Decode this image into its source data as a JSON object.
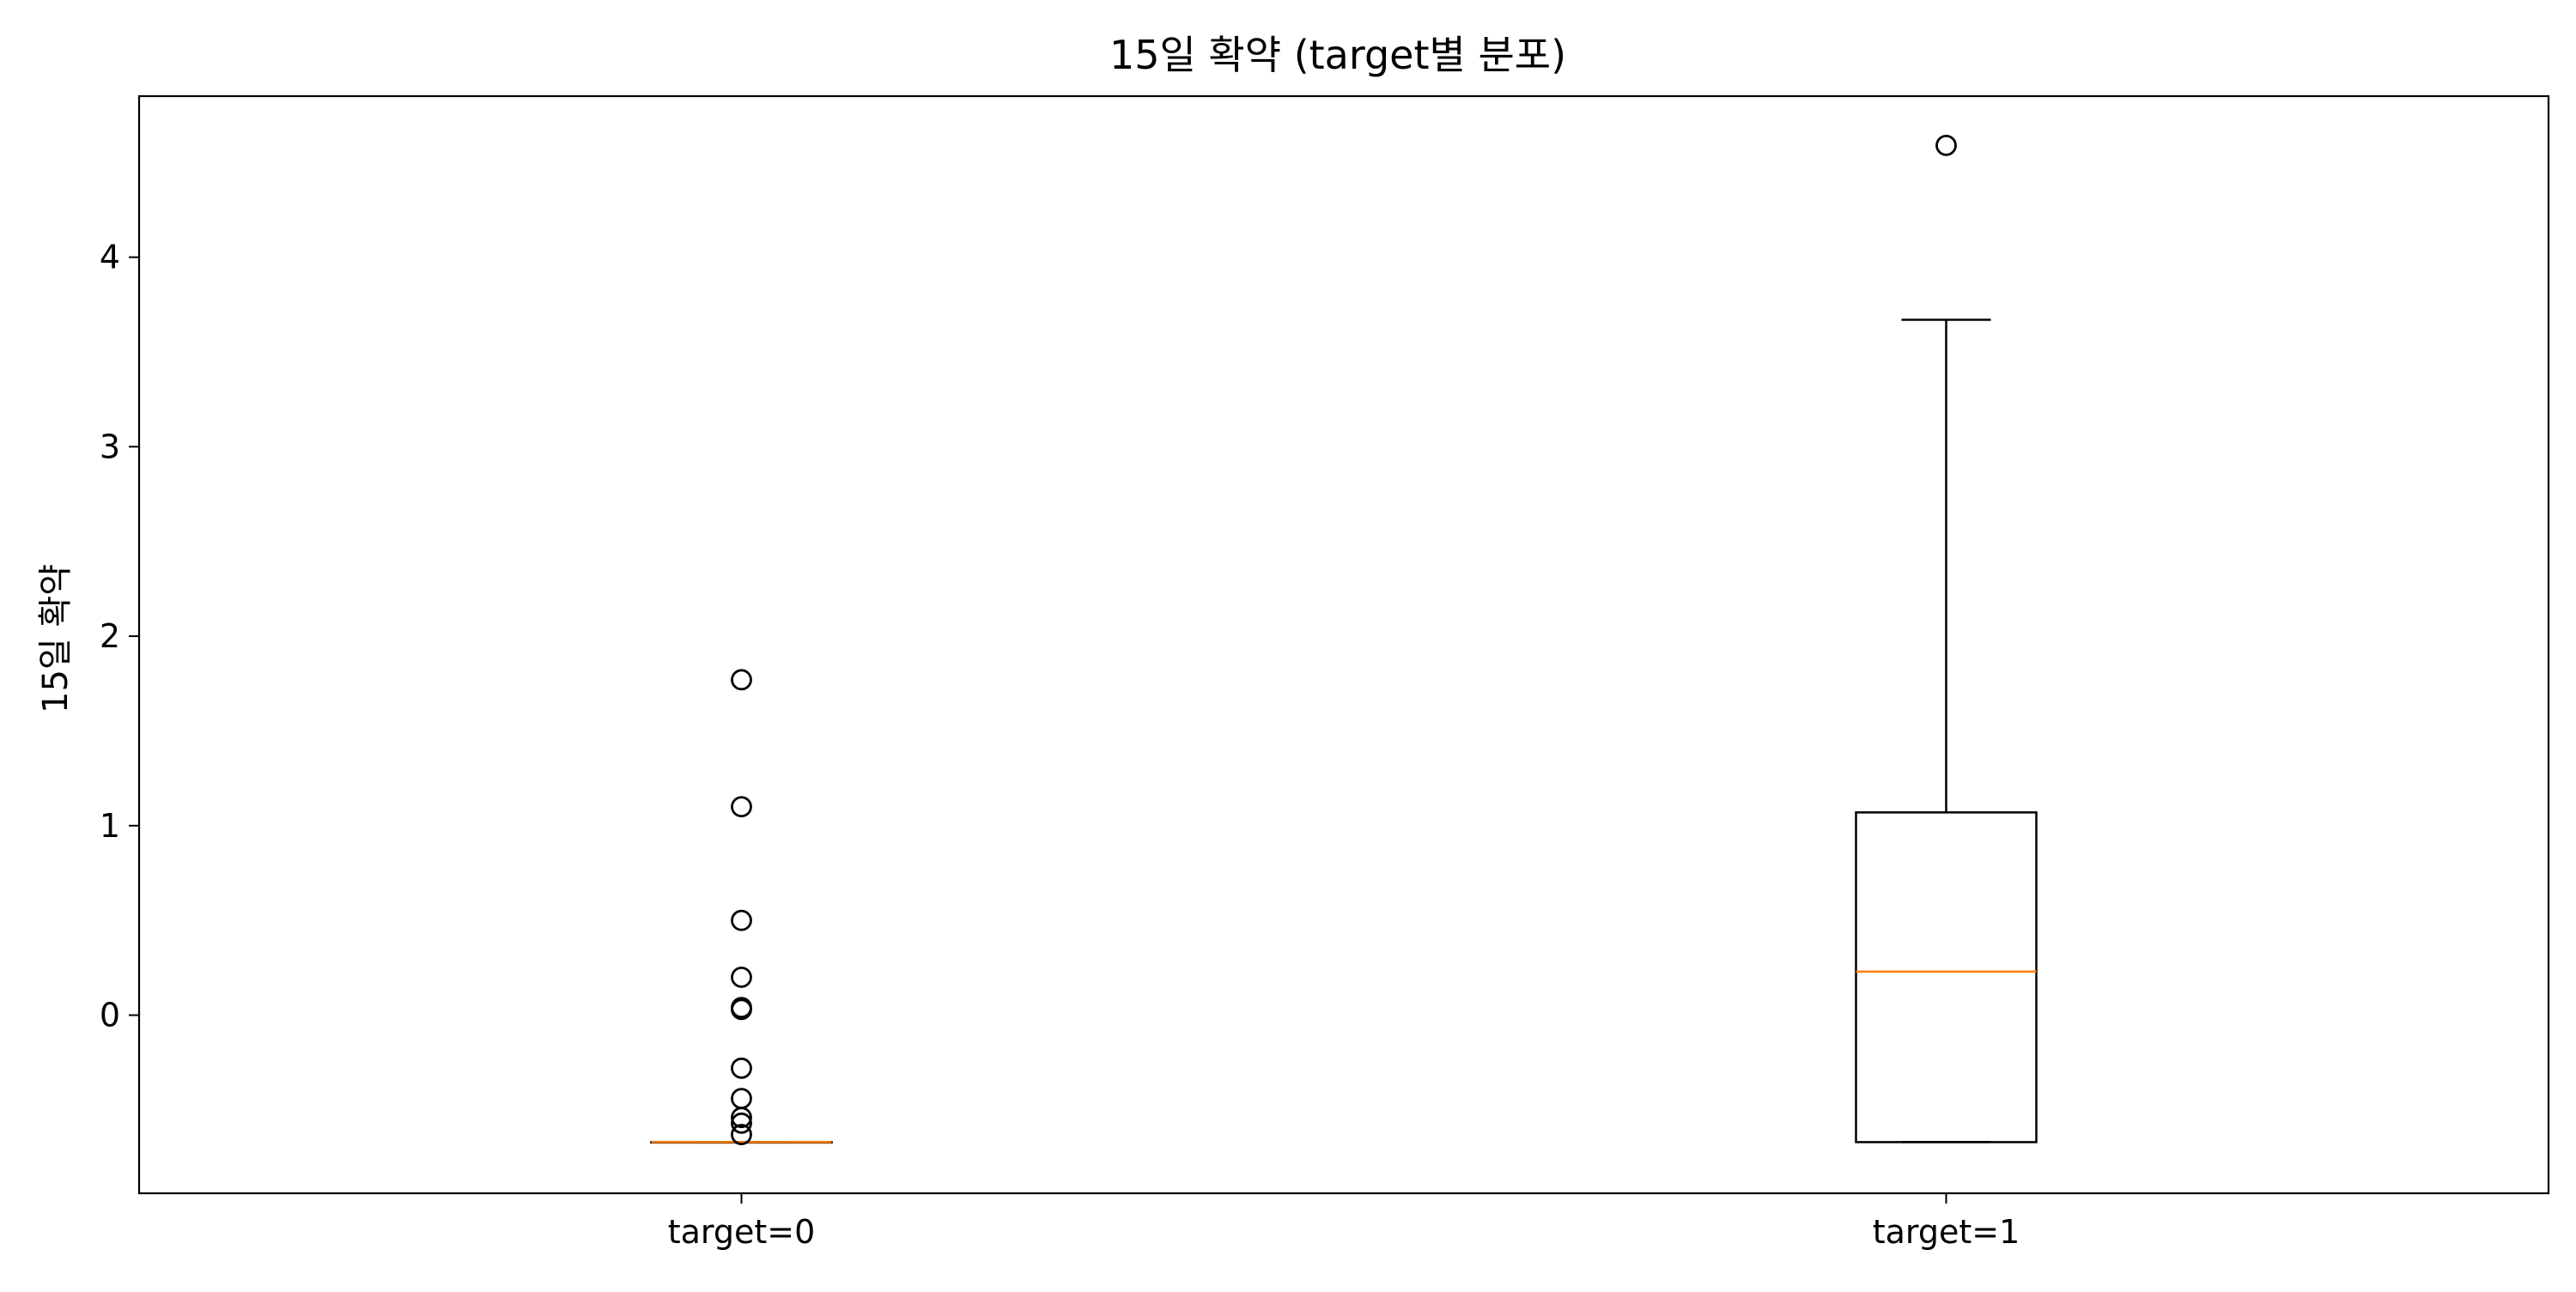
{
  "chart_data": {
    "type": "box",
    "title": "15일 확약 (target별 분포)",
    "xlabel": "",
    "ylabel": "15일 확약",
    "categories": [
      "target=0",
      "target=1"
    ],
    "yticks": [
      "0",
      "1",
      "2",
      "3",
      "4"
    ],
    "ylim": [
      -0.94,
      4.85
    ],
    "grid": false,
    "boxes": [
      {
        "category": "target=0",
        "whisker_low": -0.67,
        "q1": -0.67,
        "median": -0.67,
        "q3": -0.67,
        "whisker_high": -0.67,
        "outliers": [
          1.77,
          1.1,
          0.5,
          0.2,
          0.04,
          0.03,
          -0.28,
          -0.44,
          -0.54,
          -0.57,
          -0.63
        ]
      },
      {
        "category": "target=1",
        "whisker_low": -0.67,
        "q1": -0.67,
        "median": 0.23,
        "q3": 1.07,
        "whisker_high": 3.67,
        "outliers": [
          4.59
        ]
      }
    ],
    "colors": {
      "box": "#000000",
      "median": "#ff7f0e",
      "outlier": "#000000"
    }
  }
}
